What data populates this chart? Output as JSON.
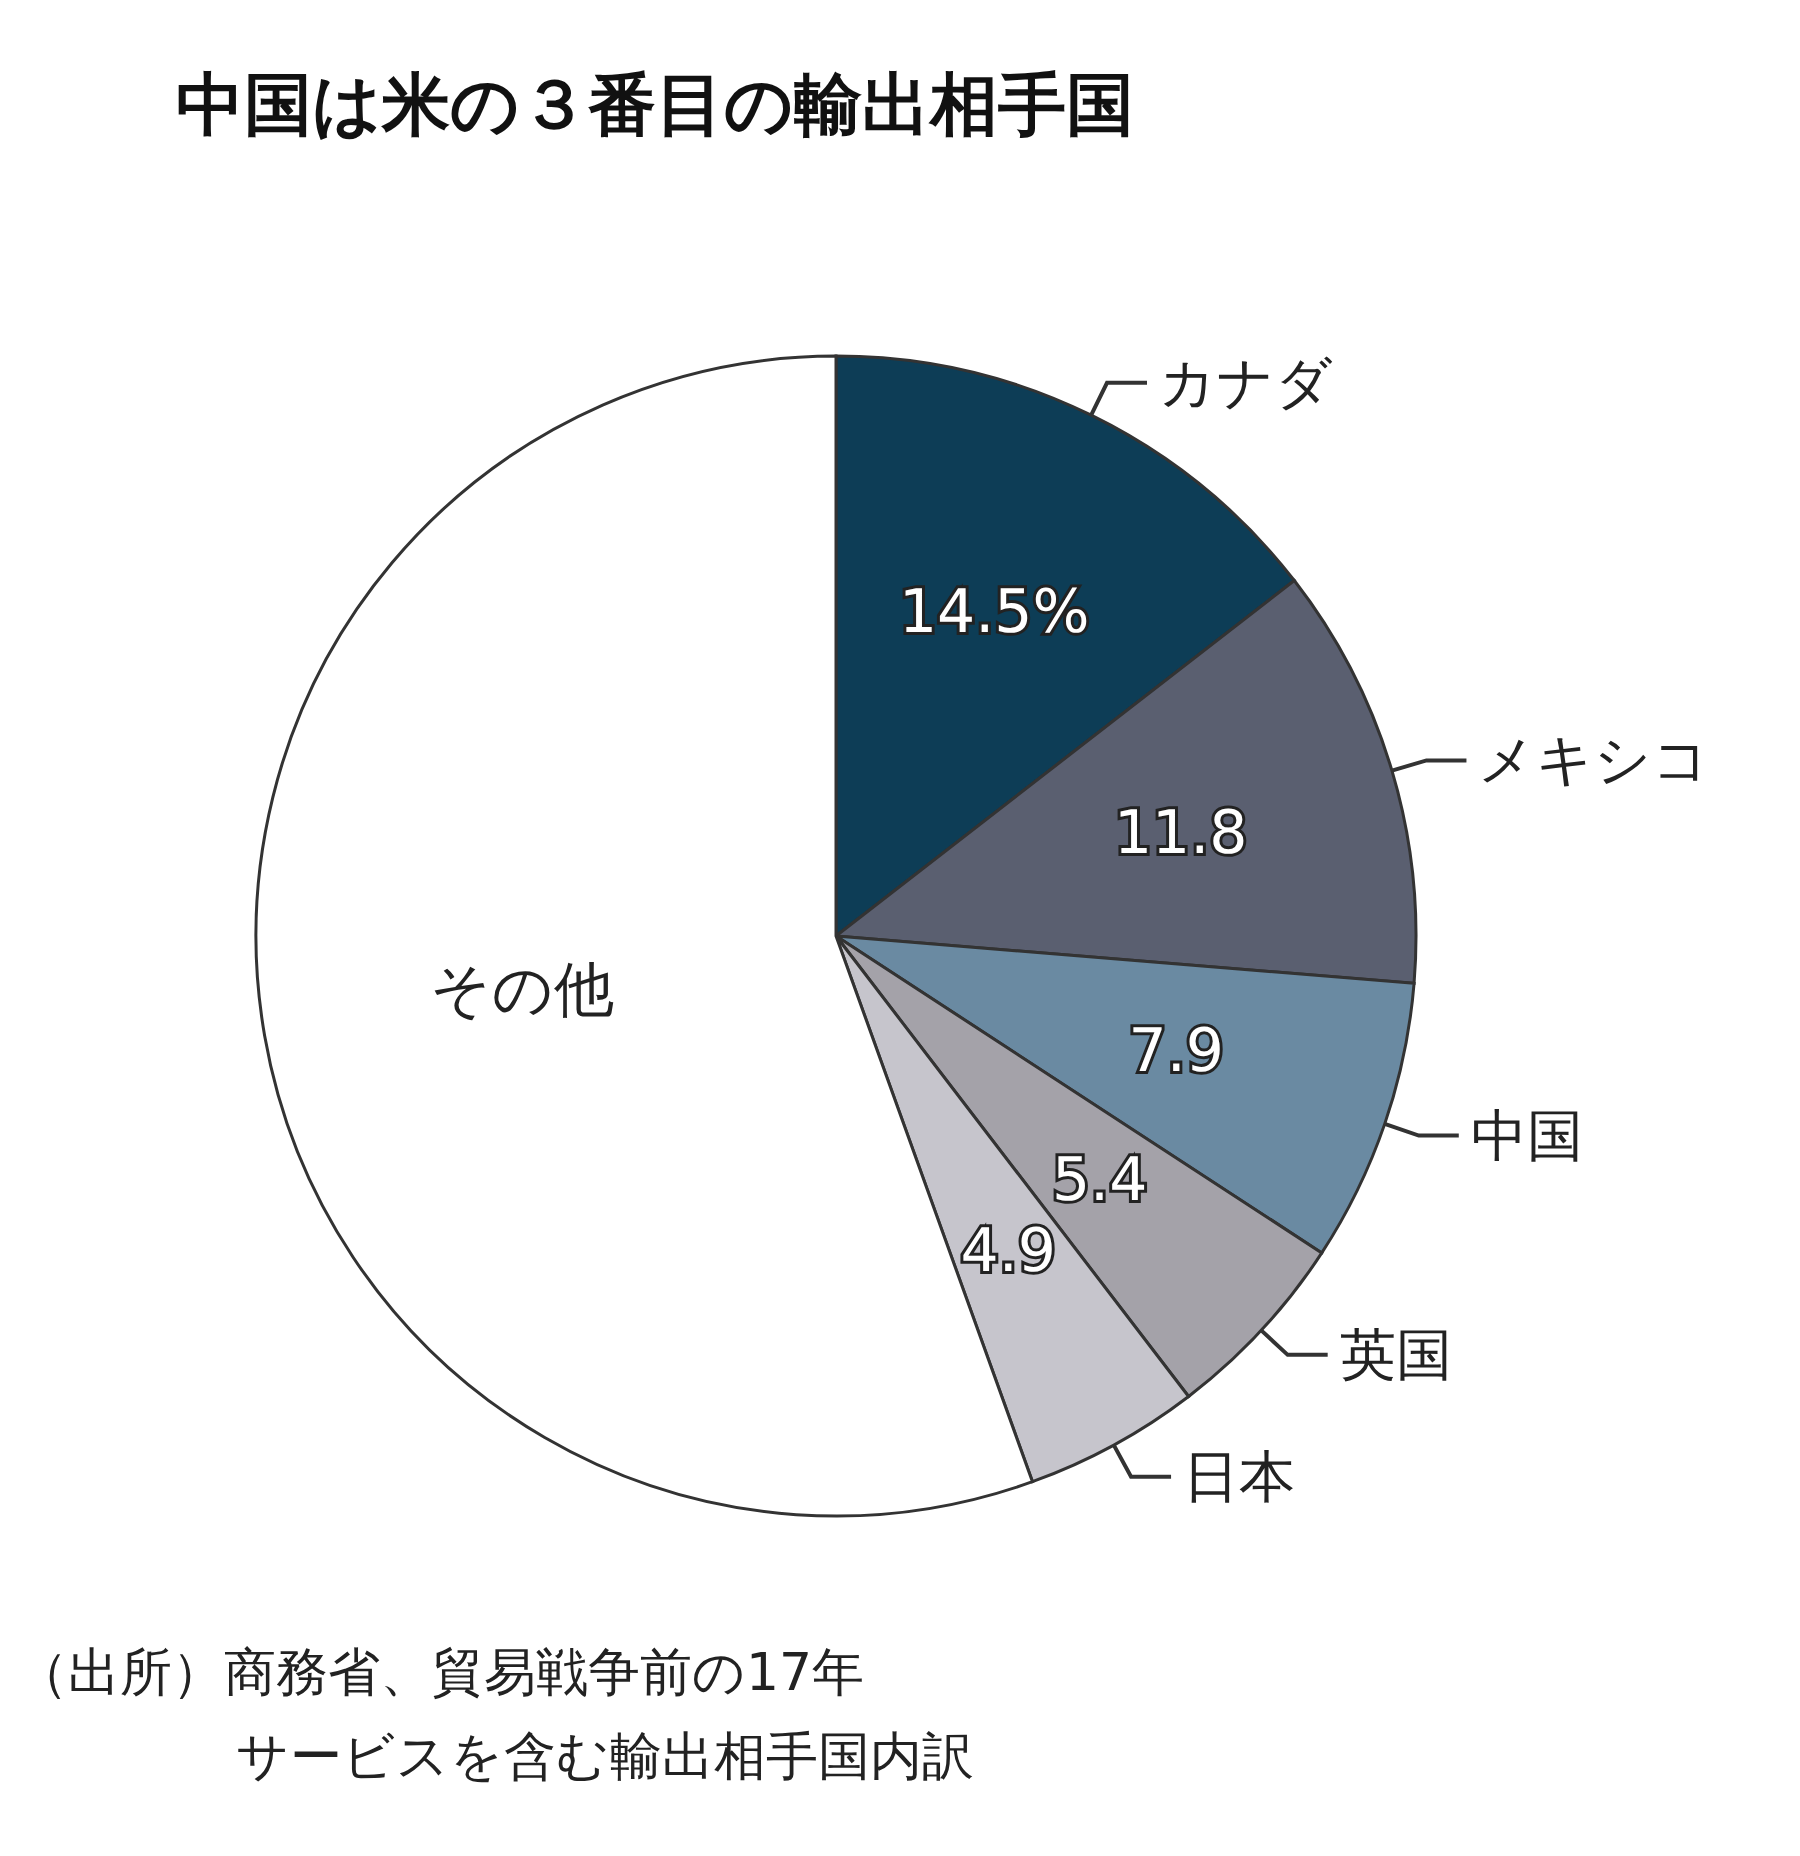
{
  "chart_data": {
    "type": "pie",
    "title": "中国は米の３番目の輸出相手国",
    "categories": [
      "カナダ",
      "メキシコ",
      "中国",
      "英国",
      "日本",
      "その他"
    ],
    "values": [
      14.5,
      11.8,
      7.9,
      5.4,
      4.9,
      55.5
    ],
    "colors": [
      "#0d3d56",
      "#5a5f70",
      "#6a8aa2",
      "#a4a2a9",
      "#c6c5cc",
      "#ffffff"
    ],
    "value_labels": [
      "14.5%",
      "11.8",
      "7.9",
      "5.4",
      "4.9",
      null
    ],
    "annotations": [
      "（出所）商務省、貿易戦争前の17年",
      "サービスを含む輸出相手国内訳"
    ]
  }
}
